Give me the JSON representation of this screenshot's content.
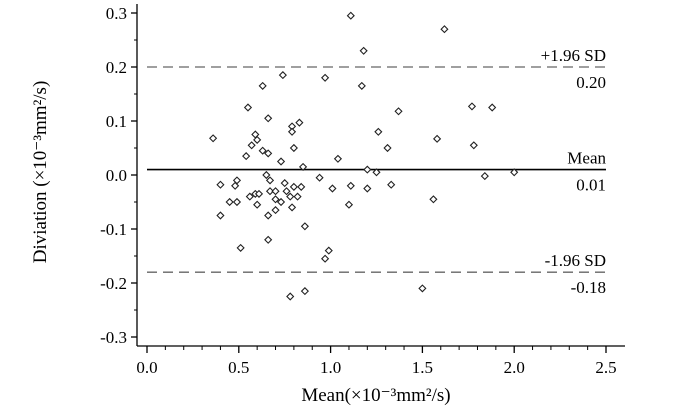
{
  "chart_data": {
    "type": "scatter",
    "title": "",
    "xlabel": "Mean(×10⁻³mm²/s)",
    "ylabel": "Diviation (×10⁻³mm²/s)",
    "xlim": [
      0.0,
      2.5
    ],
    "ylim": [
      -0.3,
      0.3
    ],
    "xticks": [
      0.0,
      0.5,
      1.0,
      1.5,
      2.0,
      2.5
    ],
    "xtick_labels": [
      "0.0",
      "0.5",
      "1.0",
      "1.5",
      "2.0",
      "2.5"
    ],
    "yticks": [
      0.3,
      0.2,
      0.1,
      0.0,
      -0.1,
      -0.2,
      -0.3
    ],
    "ytick_labels": [
      "0.3",
      "0.2",
      "0.1",
      "0.0",
      "-0.1",
      "-0.2",
      "-0.3"
    ],
    "grid": false,
    "marker": "open-diamond",
    "reference_lines": [
      {
        "name": "upper-limit",
        "value": 0.2,
        "style": "dashed",
        "label_top": "+1.96 SD",
        "label_bottom": "0.20"
      },
      {
        "name": "mean",
        "value": 0.01,
        "style": "solid",
        "label_top": "Mean",
        "label_bottom": "0.01"
      },
      {
        "name": "lower-limit",
        "value": -0.18,
        "style": "dashed",
        "label_top": "-1.96 SD",
        "label_bottom": "-0.18"
      }
    ],
    "points": [
      [
        1.11,
        0.295
      ],
      [
        1.62,
        0.27
      ],
      [
        1.18,
        0.23
      ],
      [
        0.74,
        0.185
      ],
      [
        0.97,
        0.18
      ],
      [
        1.17,
        0.165
      ],
      [
        0.63,
        0.165
      ],
      [
        0.55,
        0.125
      ],
      [
        1.77,
        0.127
      ],
      [
        1.88,
        0.125
      ],
      [
        1.37,
        0.118
      ],
      [
        0.66,
        0.105
      ],
      [
        0.83,
        0.097
      ],
      [
        0.79,
        0.09
      ],
      [
        0.79,
        0.08
      ],
      [
        1.26,
        0.08
      ],
      [
        0.59,
        0.075
      ],
      [
        0.6,
        0.065
      ],
      [
        0.36,
        0.068
      ],
      [
        0.57,
        0.055
      ],
      [
        1.58,
        0.067
      ],
      [
        1.78,
        0.055
      ],
      [
        0.8,
        0.05
      ],
      [
        1.31,
        0.05
      ],
      [
        0.63,
        0.045
      ],
      [
        0.66,
        0.04
      ],
      [
        0.54,
        0.035
      ],
      [
        1.04,
        0.03
      ],
      [
        0.73,
        0.025
      ],
      [
        0.85,
        0.015
      ],
      [
        1.2,
        0.01
      ],
      [
        1.25,
        0.005
      ],
      [
        2.0,
        0.005
      ],
      [
        1.84,
        -0.002
      ],
      [
        0.65,
        0.0
      ],
      [
        0.94,
        -0.005
      ],
      [
        0.49,
        -0.01
      ],
      [
        0.67,
        -0.01
      ],
      [
        0.75,
        -0.015
      ],
      [
        0.4,
        -0.018
      ],
      [
        0.48,
        -0.02
      ],
      [
        1.11,
        -0.02
      ],
      [
        1.33,
        -0.018
      ],
      [
        0.8,
        -0.022
      ],
      [
        0.84,
        -0.022
      ],
      [
        1.01,
        -0.025
      ],
      [
        1.2,
        -0.025
      ],
      [
        0.67,
        -0.03
      ],
      [
        0.7,
        -0.03
      ],
      [
        0.76,
        -0.03
      ],
      [
        0.59,
        -0.035
      ],
      [
        0.61,
        -0.035
      ],
      [
        0.56,
        -0.04
      ],
      [
        0.78,
        -0.04
      ],
      [
        0.82,
        -0.04
      ],
      [
        0.7,
        -0.045
      ],
      [
        1.56,
        -0.045
      ],
      [
        0.45,
        -0.05
      ],
      [
        0.49,
        -0.05
      ],
      [
        0.73,
        -0.05
      ],
      [
        0.6,
        -0.055
      ],
      [
        1.1,
        -0.055
      ],
      [
        0.79,
        -0.06
      ],
      [
        0.7,
        -0.065
      ],
      [
        0.4,
        -0.075
      ],
      [
        0.66,
        -0.075
      ],
      [
        0.86,
        -0.095
      ],
      [
        0.66,
        -0.12
      ],
      [
        0.51,
        -0.135
      ],
      [
        0.99,
        -0.14
      ],
      [
        0.97,
        -0.155
      ],
      [
        1.5,
        -0.21
      ],
      [
        0.86,
        -0.215
      ],
      [
        0.78,
        -0.225
      ]
    ]
  }
}
